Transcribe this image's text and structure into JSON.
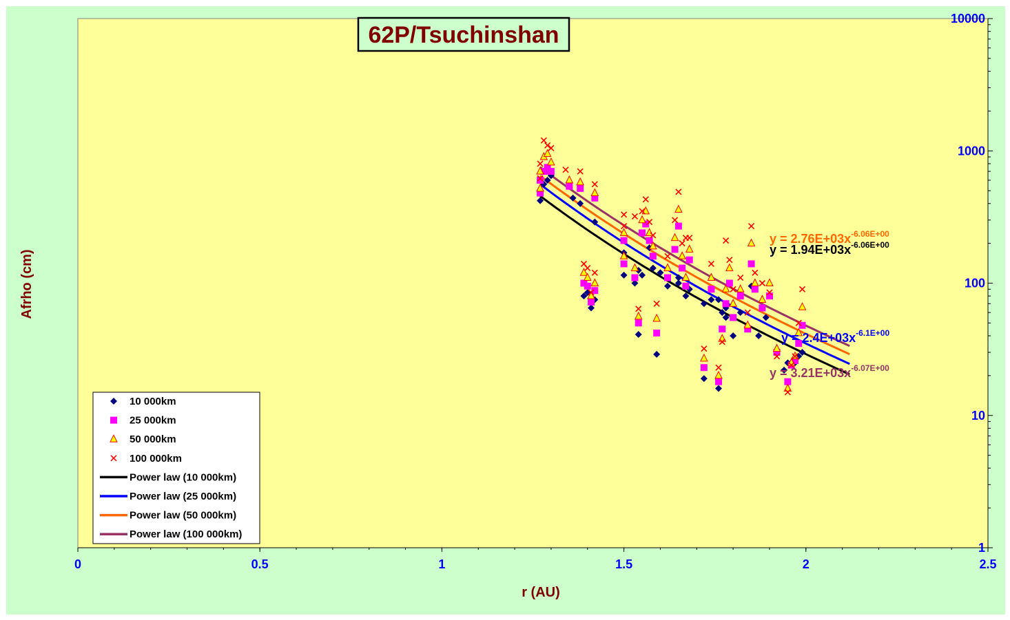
{
  "chart_data": {
    "type": "scatter",
    "title": "62P/Tsuchinshan",
    "xlabel": "r (AU)",
    "ylabel": "Afrho (cm)",
    "xlim": [
      0,
      2.5
    ],
    "ylim": [
      1,
      10000
    ],
    "y_scale": "log",
    "x_ticks": [
      "0",
      "0.5",
      "1",
      "1.5",
      "2",
      "2.5"
    ],
    "y_ticks": [
      "1",
      "10",
      "100",
      "1000",
      "10000"
    ],
    "y_axis_side": "right",
    "grid": false,
    "legend_position": "bottom-left",
    "colors": {
      "plot_bg": "#ffff99",
      "outer_bg": "#ccffcc",
      "s10": "#000080",
      "s25": "#ff00ff",
      "s50_fill": "#ffff00",
      "s50_edge": "#ff0000",
      "s100": "#ff0000",
      "fit10": "#000000",
      "fit25": "#0000ff",
      "fit50": "#ff6600",
      "fit100": "#993366",
      "tick": "#0000ff",
      "axis_title": "#800000"
    },
    "series": [
      {
        "name": "10 000km",
        "marker": "diamond",
        "points": [
          [
            1.27,
            420
          ],
          [
            1.28,
            560
          ],
          [
            1.29,
            600
          ],
          [
            1.3,
            650
          ],
          [
            1.36,
            440
          ],
          [
            1.38,
            400
          ],
          [
            1.39,
            80
          ],
          [
            1.4,
            85
          ],
          [
            1.41,
            65
          ],
          [
            1.42,
            75
          ],
          [
            1.42,
            290
          ],
          [
            1.5,
            115
          ],
          [
            1.5,
            170
          ],
          [
            1.53,
            100
          ],
          [
            1.54,
            125
          ],
          [
            1.55,
            115
          ],
          [
            1.57,
            185
          ],
          [
            1.58,
            130
          ],
          [
            1.6,
            120
          ],
          [
            1.62,
            95
          ],
          [
            1.65,
            110
          ],
          [
            1.65,
            100
          ],
          [
            1.67,
            80
          ],
          [
            1.68,
            90
          ],
          [
            1.72,
            70
          ],
          [
            1.74,
            75
          ],
          [
            1.76,
            16
          ],
          [
            1.77,
            60
          ],
          [
            1.78,
            65
          ],
          [
            1.8,
            40
          ],
          [
            1.82,
            60
          ],
          [
            1.84,
            45
          ],
          [
            1.85,
            95
          ],
          [
            1.87,
            40
          ],
          [
            1.89,
            55
          ],
          [
            1.92,
            30
          ],
          [
            1.94,
            22
          ],
          [
            1.95,
            25
          ],
          [
            1.97,
            25
          ],
          [
            1.98,
            28
          ],
          [
            1.99,
            30
          ],
          [
            1.72,
            19
          ],
          [
            1.54,
            41
          ],
          [
            1.59,
            29
          ],
          [
            1.76,
            75
          ],
          [
            1.78,
            55
          ]
        ]
      },
      {
        "name": "25 000km",
        "marker": "square",
        "points": [
          [
            1.27,
            480
          ],
          [
            1.27,
            600
          ],
          [
            1.28,
            700
          ],
          [
            1.29,
            750
          ],
          [
            1.3,
            700
          ],
          [
            1.35,
            540
          ],
          [
            1.38,
            520
          ],
          [
            1.39,
            100
          ],
          [
            1.4,
            95
          ],
          [
            1.41,
            72
          ],
          [
            1.42,
            88
          ],
          [
            1.42,
            440
          ],
          [
            1.5,
            140
          ],
          [
            1.5,
            210
          ],
          [
            1.53,
            110
          ],
          [
            1.54,
            50
          ],
          [
            1.55,
            240
          ],
          [
            1.56,
            280
          ],
          [
            1.57,
            210
          ],
          [
            1.58,
            160
          ],
          [
            1.59,
            42
          ],
          [
            1.62,
            110
          ],
          [
            1.64,
            180
          ],
          [
            1.65,
            270
          ],
          [
            1.66,
            130
          ],
          [
            1.67,
            95
          ],
          [
            1.68,
            150
          ],
          [
            1.72,
            23
          ],
          [
            1.74,
            90
          ],
          [
            1.76,
            18
          ],
          [
            1.77,
            45
          ],
          [
            1.78,
            70
          ],
          [
            1.79,
            100
          ],
          [
            1.8,
            55
          ],
          [
            1.82,
            80
          ],
          [
            1.84,
            45
          ],
          [
            1.85,
            140
          ],
          [
            1.86,
            90
          ],
          [
            1.88,
            65
          ],
          [
            1.9,
            80
          ],
          [
            1.92,
            30
          ],
          [
            1.95,
            18
          ],
          [
            1.96,
            24
          ],
          [
            1.97,
            26
          ],
          [
            1.98,
            35
          ],
          [
            1.99,
            48
          ]
        ]
      },
      {
        "name": "50 000km",
        "marker": "triangle",
        "points": [
          [
            1.27,
            520
          ],
          [
            1.27,
            700
          ],
          [
            1.28,
            900
          ],
          [
            1.29,
            950
          ],
          [
            1.3,
            820
          ],
          [
            1.35,
            600
          ],
          [
            1.38,
            580
          ],
          [
            1.39,
            120
          ],
          [
            1.4,
            110
          ],
          [
            1.41,
            80
          ],
          [
            1.42,
            100
          ],
          [
            1.42,
            480
          ],
          [
            1.5,
            160
          ],
          [
            1.5,
            240
          ],
          [
            1.53,
            130
          ],
          [
            1.54,
            56
          ],
          [
            1.55,
            300
          ],
          [
            1.56,
            350
          ],
          [
            1.57,
            240
          ],
          [
            1.58,
            190
          ],
          [
            1.59,
            54
          ],
          [
            1.62,
            130
          ],
          [
            1.64,
            220
          ],
          [
            1.65,
            360
          ],
          [
            1.66,
            160
          ],
          [
            1.67,
            110
          ],
          [
            1.68,
            180
          ],
          [
            1.72,
            27
          ],
          [
            1.74,
            110
          ],
          [
            1.76,
            20
          ],
          [
            1.77,
            38
          ],
          [
            1.78,
            90
          ],
          [
            1.79,
            130
          ],
          [
            1.8,
            70
          ],
          [
            1.82,
            90
          ],
          [
            1.84,
            48
          ],
          [
            1.85,
            200
          ],
          [
            1.86,
            100
          ],
          [
            1.88,
            75
          ],
          [
            1.9,
            100
          ],
          [
            1.92,
            32
          ],
          [
            1.95,
            16
          ],
          [
            1.96,
            25
          ],
          [
            1.97,
            28
          ],
          [
            1.98,
            42
          ],
          [
            1.99,
            66
          ]
        ]
      },
      {
        "name": "100 000km",
        "marker": "x",
        "points": [
          [
            1.27,
            620
          ],
          [
            1.27,
            800
          ],
          [
            1.28,
            1200
          ],
          [
            1.29,
            1100
          ],
          [
            1.3,
            1050
          ],
          [
            1.34,
            720
          ],
          [
            1.38,
            700
          ],
          [
            1.39,
            140
          ],
          [
            1.4,
            130
          ],
          [
            1.41,
            85
          ],
          [
            1.42,
            120
          ],
          [
            1.42,
            560
          ],
          [
            1.5,
            330
          ],
          [
            1.5,
            270
          ],
          [
            1.53,
            320
          ],
          [
            1.54,
            64
          ],
          [
            1.55,
            350
          ],
          [
            1.56,
            430
          ],
          [
            1.57,
            290
          ],
          [
            1.58,
            230
          ],
          [
            1.59,
            70
          ],
          [
            1.62,
            160
          ],
          [
            1.64,
            300
          ],
          [
            1.65,
            490
          ],
          [
            1.66,
            200
          ],
          [
            1.67,
            220
          ],
          [
            1.68,
            220
          ],
          [
            1.72,
            32
          ],
          [
            1.74,
            140
          ],
          [
            1.76,
            23
          ],
          [
            1.77,
            36
          ],
          [
            1.78,
            210
          ],
          [
            1.79,
            150
          ],
          [
            1.8,
            90
          ],
          [
            1.82,
            110
          ],
          [
            1.84,
            60
          ],
          [
            1.85,
            270
          ],
          [
            1.86,
            120
          ],
          [
            1.88,
            100
          ],
          [
            1.9,
            85
          ],
          [
            1.92,
            28
          ],
          [
            1.95,
            15
          ],
          [
            1.96,
            24
          ],
          [
            1.97,
            28
          ],
          [
            1.98,
            50
          ],
          [
            1.99,
            90
          ]
        ]
      }
    ],
    "fits": [
      {
        "name": "Power law (10 000km)",
        "a": 1940,
        "b": -6.06,
        "x_range": [
          1.27,
          2.12
        ],
        "equation": "y = 1.94E+03x",
        "exponent": "-6.06E+00"
      },
      {
        "name": "Power law (25 000km)",
        "a": 2400,
        "b": -6.1,
        "x_range": [
          1.27,
          2.12
        ],
        "equation": "y = 2.4E+03x",
        "exponent": "-6.1E+00"
      },
      {
        "name": "Power law (50 000km)",
        "a": 2760,
        "b": -6.06,
        "x_range": [
          1.27,
          2.12
        ],
        "equation": "y = 2.76E+03x",
        "exponent": "-6.06E+00"
      },
      {
        "name": "Power law (100 000km)",
        "a": 3210,
        "b": -6.07,
        "x_range": [
          1.27,
          2.12
        ],
        "equation": "y = 3.21E+03x",
        "exponent": "-6.07E+00"
      }
    ],
    "legend": [
      "10 000km",
      "25 000km",
      "50 000km",
      "100 000km",
      "Power law (10 000km)",
      "Power law (25 000km)",
      "Power law (50 000km)",
      "Power law (100 000km)"
    ]
  }
}
